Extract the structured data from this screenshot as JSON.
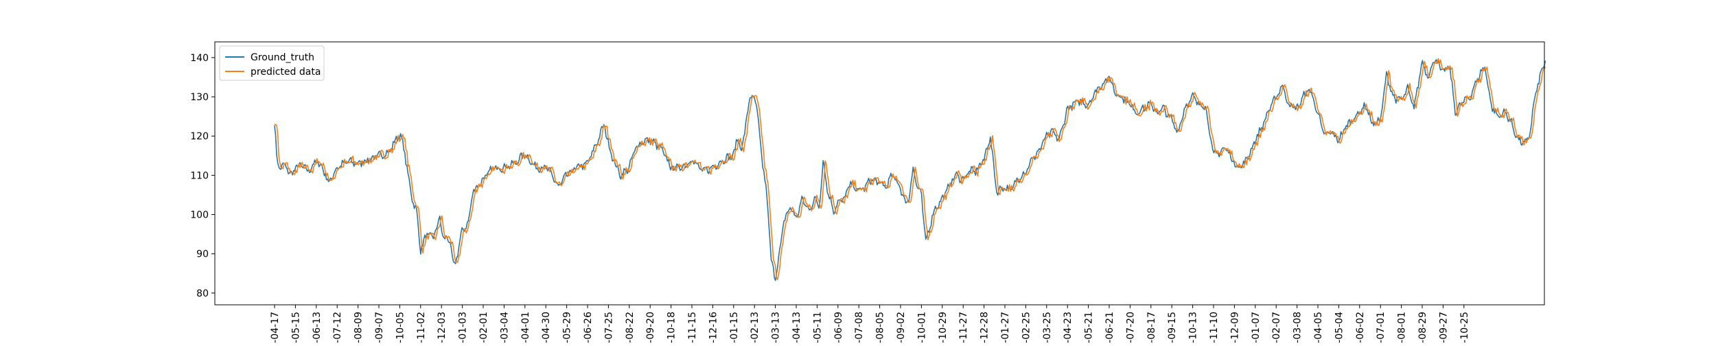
{
  "chart_data": {
    "type": "line",
    "title": "",
    "xlabel": "",
    "ylabel": "",
    "ylim": [
      77,
      144
    ],
    "grid": false,
    "legend_position": "upper-left",
    "y_ticks": [
      80,
      90,
      100,
      110,
      120,
      130,
      140
    ],
    "x_tick_labels": [
      "-04-17",
      "-05-15",
      "-06-13",
      "-07-12",
      "-08-09",
      "-09-07",
      "-10-05",
      "-11-02",
      "-12-03",
      "-01-03",
      "-02-01",
      "-03-04",
      "-04-01",
      "-04-30",
      "-05-29",
      "-06-26",
      "-07-25",
      "-08-22",
      "-09-20",
      "-10-18",
      "-11-15",
      "-12-16",
      "-01-15",
      "-02-13",
      "-03-13",
      "-04-13",
      "-05-11",
      "-06-09",
      "-07-08",
      "-08-05",
      "-09-02",
      "-10-01",
      "-10-29",
      "-11-27",
      "-12-28",
      "-01-27",
      "-02-25",
      "-03-25",
      "-04-23",
      "-05-21",
      "-06-21",
      "-07-20",
      "-08-17",
      "-09-15",
      "-10-13",
      "-11-10",
      "-12-09",
      "-01-07",
      "-02-07",
      "-03-08",
      "-04-05",
      "-05-04",
      "-06-02",
      "-07-01",
      "-08-01",
      "-08-29",
      "-09-27",
      "-10-25"
    ],
    "anchors": [
      [
        0,
        123.5
      ],
      [
        0.1,
        115
      ],
      [
        0.2,
        112
      ],
      [
        0.5,
        112.5
      ],
      [
        0.8,
        110
      ],
      [
        1,
        112
      ],
      [
        1.3,
        112.5
      ],
      [
        1.6,
        111
      ],
      [
        2,
        113.5
      ],
      [
        2.3,
        112
      ],
      [
        2.6,
        108
      ],
      [
        3,
        112
      ],
      [
        3.5,
        113.5
      ],
      [
        4,
        113
      ],
      [
        4.5,
        114
      ],
      [
        5,
        115
      ],
      [
        5.5,
        116
      ],
      [
        5.8,
        119
      ],
      [
        6,
        120.5
      ],
      [
        6.2,
        117
      ],
      [
        6.4,
        110
      ],
      [
        6.6,
        104
      ],
      [
        6.8,
        101
      ],
      [
        7,
        91
      ],
      [
        7.3,
        95
      ],
      [
        7.6,
        94
      ],
      [
        7.9,
        99
      ],
      [
        8.1,
        94
      ],
      [
        8.4,
        93.5
      ],
      [
        8.6,
        86
      ],
      [
        8.8,
        91
      ],
      [
        9,
        96
      ],
      [
        9.3,
        98
      ],
      [
        9.5,
        106
      ],
      [
        9.7,
        107
      ],
      [
        10,
        109
      ],
      [
        10.5,
        112
      ],
      [
        11,
        112
      ],
      [
        11.5,
        113
      ],
      [
        12,
        115.5
      ],
      [
        12.5,
        112
      ],
      [
        13,
        112
      ],
      [
        13.3,
        110
      ],
      [
        13.6,
        107
      ],
      [
        14,
        110
      ],
      [
        14.5,
        112
      ],
      [
        15,
        113
      ],
      [
        15.5,
        119
      ],
      [
        15.8,
        123
      ],
      [
        16,
        118
      ],
      [
        16.3,
        113
      ],
      [
        16.6,
        110
      ],
      [
        17,
        112
      ],
      [
        17.3,
        117
      ],
      [
        17.6,
        118.5
      ],
      [
        18,
        119
      ],
      [
        18.5,
        117
      ],
      [
        19,
        112
      ],
      [
        19.5,
        112
      ],
      [
        20,
        114
      ],
      [
        20.5,
        111
      ],
      [
        21,
        112
      ],
      [
        21.5,
        114
      ],
      [
        22,
        115
      ],
      [
        22.2,
        120
      ],
      [
        22.4,
        116
      ],
      [
        22.6,
        124
      ],
      [
        22.8,
        130
      ],
      [
        23,
        130
      ],
      [
        23.2,
        123
      ],
      [
        23.4,
        112
      ],
      [
        23.6,
        105
      ],
      [
        23.8,
        88
      ],
      [
        24,
        84
      ],
      [
        24.2,
        90
      ],
      [
        24.4,
        98
      ],
      [
        24.7,
        102
      ],
      [
        25,
        99
      ],
      [
        25.3,
        104
      ],
      [
        25.6,
        101
      ],
      [
        25.9,
        104
      ],
      [
        26.1,
        102
      ],
      [
        26.3,
        114
      ],
      [
        26.5,
        106
      ],
      [
        26.8,
        101
      ],
      [
        27,
        103
      ],
      [
        27.3,
        104
      ],
      [
        27.6,
        108
      ],
      [
        28,
        106
      ],
      [
        28.3,
        107
      ],
      [
        28.6,
        109
      ],
      [
        29,
        108
      ],
      [
        29.3,
        107
      ],
      [
        29.6,
        110
      ],
      [
        30,
        107
      ],
      [
        30.2,
        103
      ],
      [
        30.4,
        104
      ],
      [
        30.6,
        112
      ],
      [
        30.8,
        107
      ],
      [
        31,
        105
      ],
      [
        31.2,
        93
      ],
      [
        31.4,
        97
      ],
      [
        31.6,
        101
      ],
      [
        32,
        104
      ],
      [
        32.3,
        107
      ],
      [
        32.6,
        110
      ],
      [
        33,
        109
      ],
      [
        33.3,
        111
      ],
      [
        33.6,
        111
      ],
      [
        34,
        114
      ],
      [
        34.3,
        120
      ],
      [
        34.6,
        106
      ],
      [
        35,
        107
      ],
      [
        35.3,
        106
      ],
      [
        35.6,
        109
      ],
      [
        36,
        111
      ],
      [
        36.3,
        114
      ],
      [
        36.6,
        116
      ],
      [
        37,
        120
      ],
      [
        37.3,
        121
      ],
      [
        37.6,
        119
      ],
      [
        38,
        127
      ],
      [
        38.3,
        128
      ],
      [
        38.6,
        129
      ],
      [
        39,
        128
      ],
      [
        39.3,
        131
      ],
      [
        39.6,
        133
      ],
      [
        40,
        135
      ],
      [
        40.3,
        131
      ],
      [
        40.6,
        130
      ],
      [
        41,
        128
      ],
      [
        41.3,
        126
      ],
      [
        41.6,
        127
      ],
      [
        42,
        128
      ],
      [
        42.3,
        126
      ],
      [
        42.6,
        127
      ],
      [
        43,
        124
      ],
      [
        43.3,
        121
      ],
      [
        43.6,
        127
      ],
      [
        44,
        130
      ],
      [
        44.3,
        128
      ],
      [
        44.6,
        128
      ],
      [
        45,
        115
      ],
      [
        45.3,
        116
      ],
      [
        45.6,
        117
      ],
      [
        46,
        113
      ],
      [
        46.3,
        112
      ],
      [
        46.6,
        114
      ],
      [
        47,
        119
      ],
      [
        47.3,
        122
      ],
      [
        47.6,
        126
      ],
      [
        48,
        130
      ],
      [
        48.3,
        133
      ],
      [
        48.6,
        128
      ],
      [
        49,
        127
      ],
      [
        49.3,
        130
      ],
      [
        49.6,
        132
      ],
      [
        50,
        126
      ],
      [
        50.3,
        120
      ],
      [
        50.6,
        121
      ],
      [
        51,
        119
      ],
      [
        51.3,
        122
      ],
      [
        51.6,
        124
      ],
      [
        52,
        126
      ],
      [
        52.3,
        128
      ],
      [
        52.6,
        123
      ],
      [
        53,
        124
      ],
      [
        53.3,
        136
      ],
      [
        53.6,
        130
      ],
      [
        54,
        129
      ],
      [
        54.3,
        132
      ],
      [
        54.6,
        127
      ],
      [
        55,
        139
      ],
      [
        55.3,
        135
      ],
      [
        55.6,
        140
      ],
      [
        56,
        136
      ],
      [
        56.3,
        138
      ],
      [
        56.6,
        126
      ],
      [
        57,
        129
      ],
      [
        57.3,
        130
      ],
      [
        57.6,
        134
      ],
      [
        58,
        138
      ],
      [
        58.3,
        128
      ],
      [
        58.6,
        125
      ],
      [
        59,
        126
      ],
      [
        59.3,
        123
      ],
      [
        59.6,
        119
      ],
      [
        60,
        118
      ],
      [
        60.2,
        122
      ],
      [
        60.4,
        130
      ],
      [
        60.6,
        134
      ],
      [
        60.8,
        138
      ],
      [
        60.9,
        139
      ]
    ],
    "series": [
      {
        "name": "Ground_truth",
        "color": "#1f77b4"
      },
      {
        "name": "predicted data",
        "color": "#ff7f0e"
      }
    ]
  }
}
